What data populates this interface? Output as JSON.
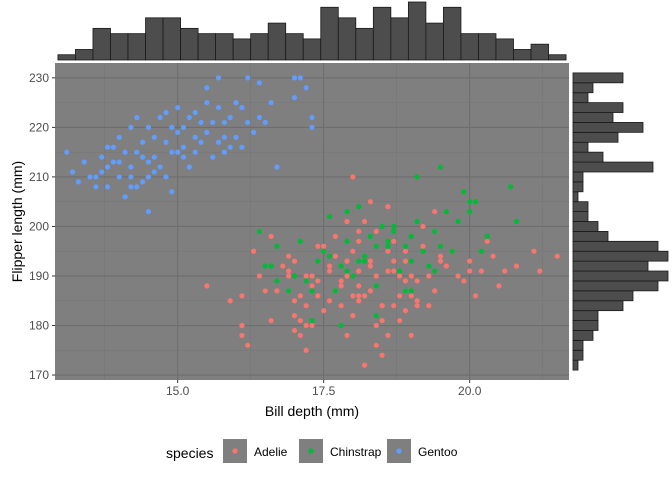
{
  "chart_data": {
    "type": "scatter",
    "title": "",
    "xlabel": "Bill depth (mm)",
    "ylabel": "Flipper length (mm)",
    "xlim": [
      12.9,
      21.7
    ],
    "ylim": [
      169,
      233
    ],
    "xticks": [
      {
        "value": 15,
        "label": "15.0"
      },
      {
        "value": 17.5,
        "label": "17.5"
      },
      {
        "value": 20,
        "label": "20.0"
      }
    ],
    "yticks": [
      {
        "value": 170,
        "label": "170"
      },
      {
        "value": 180,
        "label": "180"
      },
      {
        "value": 190,
        "label": "190"
      },
      {
        "value": 200,
        "label": "200"
      },
      {
        "value": 210,
        "label": "210"
      },
      {
        "value": 220,
        "label": "220"
      },
      {
        "value": 230,
        "label": "230"
      }
    ],
    "legend": {
      "title": "species",
      "position": "bottom"
    },
    "series": [
      {
        "name": "Adelie",
        "color": "#F8766D",
        "points": [
          [
            15.5,
            188
          ],
          [
            15.9,
            185
          ],
          [
            16.1,
            186
          ],
          [
            16.1,
            180
          ],
          [
            16.2,
            176
          ],
          [
            16.3,
            195
          ],
          [
            16.1,
            178
          ],
          [
            16.4,
            190
          ],
          [
            16.5,
            187
          ],
          [
            16.6,
            181
          ],
          [
            16.7,
            187
          ],
          [
            16.8,
            192
          ],
          [
            16.9,
            190
          ],
          [
            17.0,
            193
          ],
          [
            17.0,
            185
          ],
          [
            17.1,
            186
          ],
          [
            17.1,
            181
          ],
          [
            17.2,
            190
          ],
          [
            17.2,
            184
          ],
          [
            17.3,
            180
          ],
          [
            17.3,
            188
          ],
          [
            17.4,
            186
          ],
          [
            17.4,
            196
          ],
          [
            17.5,
            183
          ],
          [
            17.6,
            191
          ],
          [
            17.6,
            185
          ],
          [
            17.7,
            187
          ],
          [
            17.7,
            194
          ],
          [
            17.8,
            188
          ],
          [
            17.8,
            184
          ],
          [
            17.9,
            193
          ],
          [
            17.9,
            190
          ],
          [
            18.0,
            182
          ],
          [
            18.0,
            195
          ],
          [
            18.1,
            186
          ],
          [
            18.1,
            199
          ],
          [
            18.1,
            191
          ],
          [
            18.2,
            186
          ],
          [
            18.2,
            201
          ],
          [
            18.3,
            193
          ],
          [
            18.3,
            187
          ],
          [
            18.4,
            176
          ],
          [
            18.4,
            199
          ],
          [
            18.4,
            190
          ],
          [
            18.5,
            181
          ],
          [
            18.5,
            184
          ],
          [
            18.6,
            195
          ],
          [
            18.6,
            178
          ],
          [
            18.7,
            191
          ],
          [
            18.7,
            197
          ],
          [
            18.8,
            181
          ],
          [
            18.8,
            186
          ],
          [
            18.9,
            189
          ],
          [
            18.9,
            195
          ],
          [
            19.0,
            178
          ],
          [
            19.0,
            190
          ],
          [
            19.1,
            184
          ],
          [
            19.2,
            196
          ],
          [
            19.3,
            190
          ],
          [
            19.4,
            187
          ],
          [
            19.5,
            194
          ],
          [
            19.6,
            192
          ],
          [
            19.7,
            195
          ],
          [
            19.8,
            190
          ],
          [
            19.9,
            189
          ],
          [
            20.0,
            193
          ],
          [
            20.1,
            186
          ],
          [
            20.2,
            191
          ],
          [
            20.4,
            194
          ],
          [
            20.6,
            191
          ],
          [
            20.8,
            192
          ],
          [
            21.1,
            195
          ],
          [
            21.2,
            191
          ],
          [
            21.5,
            194
          ],
          [
            18.2,
            172
          ],
          [
            18.5,
            174
          ],
          [
            17.7,
            198
          ],
          [
            17.9,
            201
          ],
          [
            18.6,
            204
          ],
          [
            19.0,
            186
          ],
          [
            16.9,
            194
          ],
          [
            17.4,
            189
          ],
          [
            17.3,
            190
          ],
          [
            18.0,
            186
          ],
          [
            18.7,
            184
          ],
          [
            19.2,
            200
          ],
          [
            18.3,
            192
          ],
          [
            17.6,
            192
          ],
          [
            18.9,
            193
          ],
          [
            17.9,
            178
          ],
          [
            18.1,
            197
          ],
          [
            18.5,
            184
          ],
          [
            19.3,
            184
          ],
          [
            20.3,
            197
          ],
          [
            20.0,
            191
          ],
          [
            17.8,
            189
          ],
          [
            18.4,
            180
          ],
          [
            18.9,
            183
          ],
          [
            17.2,
            175
          ],
          [
            19.6,
            192
          ],
          [
            18.6,
            191
          ],
          [
            19.1,
            189
          ],
          [
            18.8,
            190
          ],
          [
            17.0,
            182
          ],
          [
            18.3,
            205
          ],
          [
            19.4,
            203
          ],
          [
            17.1,
            178
          ],
          [
            18.0,
            210
          ],
          [
            17.5,
            196
          ],
          [
            19.1,
            185
          ],
          [
            20.5,
            188
          ],
          [
            16.6,
            198
          ],
          [
            17.2,
            180
          ],
          [
            18.7,
            193
          ],
          [
            16.9,
            191
          ],
          [
            18.1,
            185
          ],
          [
            19.5,
            193
          ],
          [
            18.9,
            187
          ],
          [
            17.0,
            179
          ],
          [
            18.1,
            188
          ]
        ]
      },
      {
        "name": "Chinstrap",
        "color": "#00BA38",
        "points": [
          [
            16.4,
            199
          ],
          [
            16.6,
            192
          ],
          [
            16.7,
            196
          ],
          [
            16.7,
            189
          ],
          [
            16.9,
            187
          ],
          [
            17.0,
            190
          ],
          [
            17.1,
            197
          ],
          [
            17.3,
            187
          ],
          [
            17.3,
            181
          ],
          [
            17.4,
            193
          ],
          [
            17.5,
            195
          ],
          [
            17.6,
            194
          ],
          [
            17.7,
            187
          ],
          [
            17.8,
            192
          ],
          [
            17.9,
            191
          ],
          [
            17.9,
            197
          ],
          [
            18.0,
            190
          ],
          [
            18.1,
            193
          ],
          [
            18.2,
            194
          ],
          [
            18.2,
            193
          ],
          [
            18.3,
            198
          ],
          [
            18.4,
            182
          ],
          [
            18.4,
            196
          ],
          [
            18.5,
            200
          ],
          [
            18.6,
            196
          ],
          [
            18.7,
            199
          ],
          [
            18.8,
            191
          ],
          [
            18.9,
            196
          ],
          [
            19.0,
            198
          ],
          [
            19.0,
            187
          ],
          [
            19.1,
            201
          ],
          [
            19.1,
            210
          ],
          [
            19.2,
            195
          ],
          [
            19.3,
            192
          ],
          [
            19.4,
            199
          ],
          [
            19.5,
            212
          ],
          [
            19.5,
            196
          ],
          [
            19.6,
            203
          ],
          [
            19.7,
            195
          ],
          [
            19.8,
            201
          ],
          [
            19.9,
            207
          ],
          [
            20.0,
            205
          ],
          [
            20.0,
            203
          ],
          [
            20.1,
            205
          ],
          [
            20.2,
            195
          ],
          [
            20.3,
            198
          ],
          [
            20.7,
            208
          ],
          [
            20.8,
            201
          ],
          [
            17.8,
            180
          ],
          [
            16.5,
            192
          ],
          [
            18.6,
            197
          ],
          [
            18.9,
            187
          ],
          [
            17.9,
            203
          ],
          [
            18.4,
            188
          ],
          [
            17.6,
            202
          ],
          [
            19.0,
            193
          ],
          [
            18.7,
            200
          ],
          [
            17.2,
            189
          ],
          [
            19.4,
            191
          ],
          [
            18.1,
            204
          ]
        ]
      },
      {
        "name": "Gentoo",
        "color": "#619CFF",
        "points": [
          [
            13.1,
            215
          ],
          [
            13.2,
            211
          ],
          [
            13.3,
            209
          ],
          [
            13.4,
            213
          ],
          [
            13.5,
            210
          ],
          [
            13.6,
            208
          ],
          [
            13.7,
            214
          ],
          [
            13.7,
            211
          ],
          [
            13.8,
            216
          ],
          [
            13.8,
            208
          ],
          [
            13.9,
            213
          ],
          [
            14.0,
            210
          ],
          [
            14.0,
            218
          ],
          [
            14.1,
            215
          ],
          [
            14.1,
            206
          ],
          [
            14.2,
            210
          ],
          [
            14.2,
            212
          ],
          [
            14.3,
            215
          ],
          [
            14.3,
            208
          ],
          [
            14.4,
            209
          ],
          [
            14.4,
            217
          ],
          [
            14.5,
            213
          ],
          [
            14.5,
            203
          ],
          [
            14.5,
            210
          ],
          [
            14.6,
            218
          ],
          [
            14.6,
            214
          ],
          [
            14.7,
            212
          ],
          [
            14.7,
            222
          ],
          [
            14.8,
            217
          ],
          [
            14.8,
            210
          ],
          [
            14.9,
            220
          ],
          [
            14.9,
            215
          ],
          [
            15.0,
            215
          ],
          [
            15.0,
            219
          ],
          [
            15.1,
            220
          ],
          [
            15.1,
            214
          ],
          [
            15.2,
            222
          ],
          [
            15.2,
            212
          ],
          [
            15.3,
            223
          ],
          [
            15.3,
            218
          ],
          [
            15.4,
            217
          ],
          [
            15.5,
            225
          ],
          [
            15.5,
            219
          ],
          [
            15.6,
            221
          ],
          [
            15.7,
            230
          ],
          [
            15.7,
            217
          ],
          [
            15.8,
            221
          ],
          [
            15.8,
            215
          ],
          [
            15.9,
            222
          ],
          [
            16.0,
            225
          ],
          [
            16.0,
            218
          ],
          [
            16.1,
            216
          ],
          [
            16.2,
            230
          ],
          [
            16.2,
            221
          ],
          [
            16.3,
            219
          ],
          [
            16.4,
            229
          ],
          [
            16.4,
            222
          ],
          [
            16.5,
            221
          ],
          [
            16.6,
            225
          ],
          [
            16.7,
            212
          ],
          [
            17.0,
            230
          ],
          [
            17.1,
            230
          ],
          [
            17.2,
            228
          ],
          [
            17.3,
            222
          ],
          [
            17.0,
            226
          ],
          [
            14.4,
            214
          ],
          [
            15.6,
            214
          ],
          [
            14.9,
            207
          ],
          [
            14.2,
            220
          ],
          [
            15.7,
            224
          ],
          [
            13.9,
            216
          ],
          [
            14.6,
            211
          ],
          [
            15.3,
            215
          ],
          [
            15.9,
            216
          ],
          [
            14.3,
            222
          ],
          [
            14.0,
            213
          ],
          [
            15.0,
            224
          ],
          [
            15.5,
            228
          ],
          [
            16.1,
            224
          ],
          [
            14.8,
            223
          ],
          [
            13.6,
            210
          ],
          [
            14.5,
            220
          ],
          [
            15.1,
            216
          ],
          [
            17.3,
            220
          ],
          [
            14.2,
            208
          ],
          [
            13.8,
            212
          ],
          [
            15.4,
            221
          ],
          [
            15.8,
            218
          ]
        ]
      }
    ],
    "x_histogram": {
      "bins": [
        13.1,
        13.4,
        13.7,
        14.0,
        14.3,
        14.6,
        14.9,
        15.2,
        15.5,
        15.8,
        16.1,
        16.4,
        16.7,
        17.0,
        17.3,
        17.6,
        17.9,
        18.2,
        18.5,
        18.8,
        19.1,
        19.4,
        19.7,
        20.0,
        20.3,
        20.6,
        20.9,
        21.2,
        21.5
      ],
      "counts": [
        1,
        2,
        6,
        5,
        5,
        8,
        8,
        6,
        5,
        5,
        4,
        5,
        7,
        5,
        4,
        10,
        8,
        6,
        10,
        8,
        11,
        7,
        10,
        5,
        5,
        4,
        2,
        3,
        1
      ],
      "bin_width": 0.3
    },
    "y_histogram": {
      "bins": [
        172,
        174,
        176,
        178,
        180,
        182,
        184,
        186,
        188,
        190,
        192,
        194,
        196,
        198,
        200,
        202,
        204,
        206,
        208,
        210,
        212,
        214,
        216,
        218,
        220,
        222,
        224,
        226,
        228,
        230
      ],
      "counts": [
        1,
        2,
        2,
        4,
        5,
        5,
        10,
        12,
        17,
        19,
        15,
        19,
        17,
        7,
        5,
        3,
        3,
        1,
        2,
        2,
        16,
        6,
        3,
        9,
        14,
        8,
        10,
        3,
        4,
        10
      ],
      "bin_width": 2
    }
  },
  "colors": {
    "panel_bg": "#7F7F7F",
    "grid_major": "#6E6E6E",
    "grid_minor": "#767676",
    "hist_fill": "#4D4D4D",
    "hist_stroke": "#1A1A1A",
    "axis_text": "#4D4D4D",
    "legend_key_bg": "#7F7F7F"
  }
}
